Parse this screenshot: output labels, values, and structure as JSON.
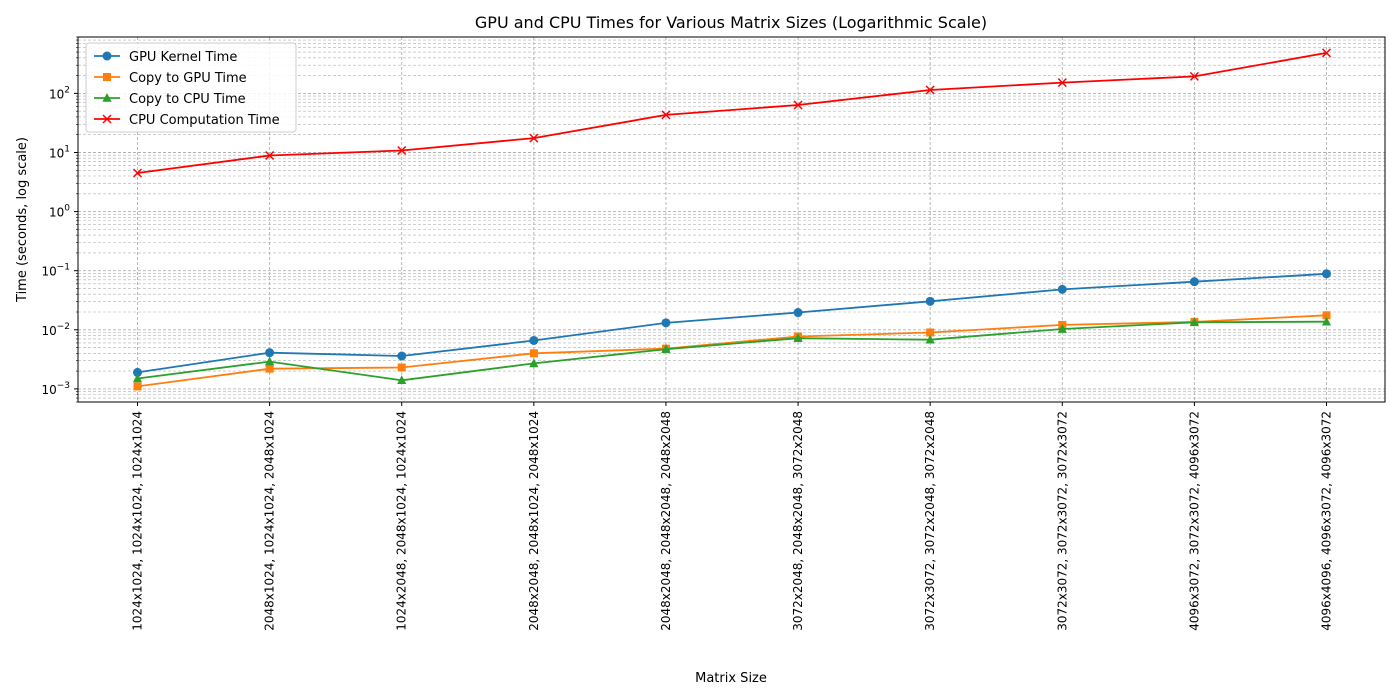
{
  "chart_data": {
    "type": "line",
    "title": "GPU and CPU Times for Various Matrix Sizes (Logarithmic Scale)",
    "xlabel": "Matrix Size",
    "ylabel": "Time (seconds, log scale)",
    "yscale": "log",
    "ylim": [
      0.0006,
      900
    ],
    "grid": "both (major and minor), dashed",
    "legend": "upper-left",
    "categories": [
      "1024x1024, 1024x1024, 1024x1024",
      "2048x1024, 1024x1024, 2048x1024",
      "1024x2048, 2048x1024, 1024x1024",
      "2048x2048, 2048x1024, 2048x1024",
      "2048x2048, 2048x2048, 2048x2048",
      "3072x2048, 2048x2048, 3072x2048",
      "3072x3072, 3072x2048, 3072x2048",
      "3072x3072, 3072x3072, 3072x3072",
      "4096x3072, 3072x3072, 4096x3072",
      "4096x4096, 4096x3072, 4096x3072"
    ],
    "y_ticks": [
      {
        "value": 0.001,
        "base": "10",
        "exp": "−3"
      },
      {
        "value": 0.01,
        "base": "10",
        "exp": "−2"
      },
      {
        "value": 0.1,
        "base": "10",
        "exp": "−1"
      },
      {
        "value": 1,
        "base": "10",
        "exp": "0"
      },
      {
        "value": 10,
        "base": "10",
        "exp": "1"
      },
      {
        "value": 100,
        "base": "10",
        "exp": "2"
      }
    ],
    "series": [
      {
        "name": "GPU Kernel Time",
        "color": "#1f77b4",
        "marker": "circle",
        "values": [
          0.0019,
          0.0041,
          0.0036,
          0.0066,
          0.0131,
          0.0196,
          0.0303,
          0.0483,
          0.0652,
          0.0887
        ]
      },
      {
        "name": "Copy to GPU Time",
        "color": "#ff7f0e",
        "marker": "square",
        "values": [
          0.0011,
          0.0022,
          0.0023,
          0.004,
          0.0048,
          0.0077,
          0.009,
          0.0121,
          0.0136,
          0.0176
        ]
      },
      {
        "name": "Copy to CPU Time",
        "color": "#2ca02c",
        "marker": "triangle-up",
        "values": [
          0.0015,
          0.0029,
          0.0014,
          0.0027,
          0.0047,
          0.0072,
          0.0068,
          0.0103,
          0.0134,
          0.0137
        ]
      },
      {
        "name": "CPU Computation Time",
        "color": "#ff0000",
        "marker": "x",
        "values": [
          4.5,
          8.9,
          10.8,
          17.5,
          43.3,
          63.7,
          114.0,
          152.0,
          194.0,
          485.0
        ]
      }
    ]
  }
}
